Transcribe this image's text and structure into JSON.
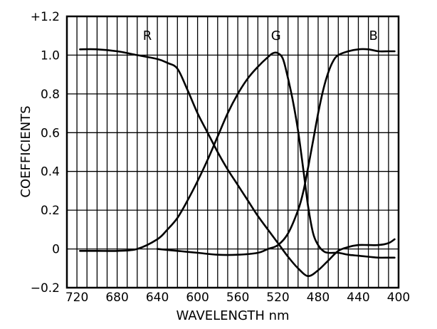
{
  "chart_data": {
    "type": "line",
    "title": "",
    "xlabel": "WAVELENGTH nm",
    "ylabel": "COEFFICIENTS",
    "xlim": [
      730,
      400
    ],
    "ylim": [
      -0.2,
      1.2
    ],
    "x_reversed": true,
    "grid": true,
    "x_ticks": [
      720,
      680,
      640,
      600,
      560,
      520,
      480,
      440,
      400
    ],
    "x_tick_labels": [
      "720",
      "680",
      "640",
      "600",
      "560",
      "520",
      "480",
      "440",
      "400"
    ],
    "y_ticks": [
      1.2,
      1.0,
      0.8,
      0.6,
      0.4,
      0.2,
      0,
      -0.2
    ],
    "y_tick_labels": [
      "+1.2",
      "1.0",
      "0.8",
      "0.6",
      "0.4",
      "0.2",
      "0",
      "−0.2"
    ],
    "series": [
      {
        "name": "R",
        "x": [
          717,
          700,
          680,
          660,
          640,
          630,
          620,
          610,
          600,
          590,
          580,
          570,
          560,
          550,
          540,
          530,
          520,
          510,
          500,
          490,
          480,
          470,
          460,
          450,
          440,
          430,
          420,
          410,
          404
        ],
        "y": [
          1.03,
          1.03,
          1.02,
          1.0,
          0.98,
          0.96,
          0.93,
          0.82,
          0.7,
          0.6,
          0.5,
          0.41,
          0.33,
          0.25,
          0.17,
          0.1,
          0.03,
          -0.04,
          -0.1,
          -0.14,
          -0.11,
          -0.06,
          -0.01,
          0.01,
          0.02,
          0.02,
          0.02,
          0.03,
          0.05
        ]
      },
      {
        "name": "G",
        "x": [
          717,
          700,
          680,
          660,
          640,
          630,
          620,
          610,
          600,
          590,
          580,
          570,
          560,
          550,
          540,
          530,
          525,
          520,
          515,
          510,
          505,
          500,
          495,
          490,
          485,
          480,
          475,
          470,
          460,
          450,
          440,
          430,
          420,
          410,
          404
        ],
        "y": [
          -0.01,
          -0.01,
          -0.01,
          0.0,
          0.05,
          0.1,
          0.16,
          0.25,
          0.35,
          0.46,
          0.58,
          0.7,
          0.8,
          0.88,
          0.94,
          0.99,
          1.01,
          1.01,
          0.98,
          0.88,
          0.76,
          0.61,
          0.42,
          0.22,
          0.08,
          0.02,
          -0.01,
          -0.02,
          -0.02,
          -0.03,
          -0.035,
          -0.04,
          -0.045,
          -0.045,
          -0.045
        ]
      },
      {
        "name": "B",
        "x": [
          640,
          620,
          600,
          580,
          560,
          540,
          530,
          520,
          510,
          500,
          495,
          490,
          485,
          480,
          475,
          470,
          465,
          460,
          450,
          440,
          430,
          420,
          410,
          404
        ],
        "y": [
          0.0,
          -0.01,
          -0.02,
          -0.03,
          -0.03,
          -0.02,
          0.0,
          0.02,
          0.08,
          0.2,
          0.29,
          0.42,
          0.56,
          0.7,
          0.82,
          0.91,
          0.97,
          1.0,
          1.02,
          1.03,
          1.03,
          1.02,
          1.02,
          1.02
        ]
      }
    ]
  }
}
